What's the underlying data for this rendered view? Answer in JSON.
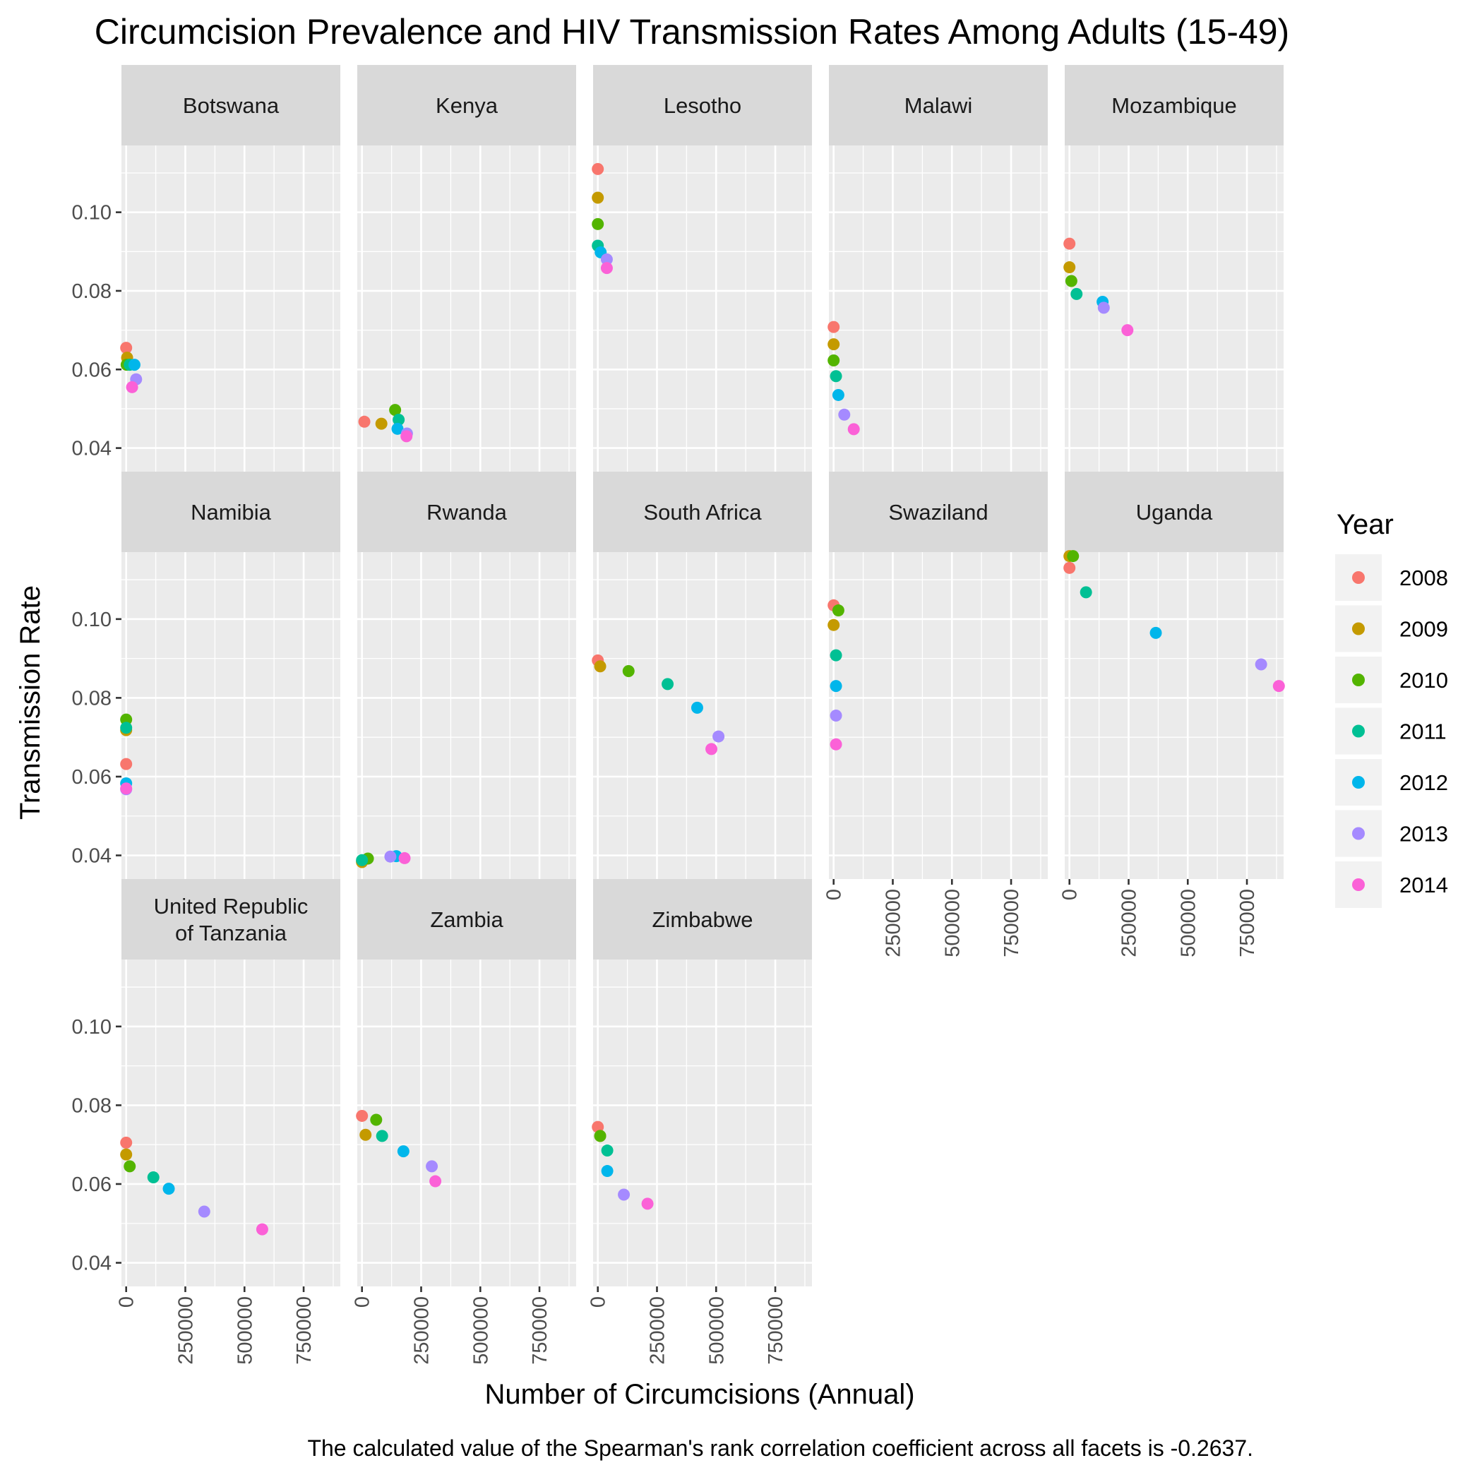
{
  "title": "Circumcision Prevalence and HIV Transmission Rates Among Adults (15-49)",
  "caption": "The calculated value of the Spearman's rank correlation coefficient across all facets is -0.2637.",
  "legend": {
    "title": "Year",
    "entries": [
      {
        "label": "2008",
        "color": "#F8766D"
      },
      {
        "label": "2009",
        "color": "#C49A00"
      },
      {
        "label": "2010",
        "color": "#53B400"
      },
      {
        "label": "2011",
        "color": "#00C094"
      },
      {
        "label": "2012",
        "color": "#00B6EB"
      },
      {
        "label": "2013",
        "color": "#A58AFF"
      },
      {
        "label": "2014",
        "color": "#FB61D7"
      }
    ]
  },
  "chart_data": {
    "type": "scatter",
    "facet_wrap": true,
    "xlabel": "Number of Circumcisions (Annual)",
    "ylabel": "Transmission Rate",
    "xlim": [
      -20000,
      905000
    ],
    "ylim": [
      0.034,
      0.117
    ],
    "x_ticks": [
      0,
      250000,
      500000,
      750000
    ],
    "x_tick_labels": [
      "0",
      "250000",
      "500000",
      "750000"
    ],
    "y_ticks": [
      0.04,
      0.06,
      0.08,
      0.1
    ],
    "y_tick_labels": [
      "0.04",
      "0.06",
      "0.08",
      "0.10"
    ],
    "legend_position": "right",
    "grid": true,
    "facets": [
      {
        "name": "Botswana",
        "points": [
          {
            "year": "2008",
            "x": 0,
            "y": 0.0655
          },
          {
            "year": "2009",
            "x": 4000,
            "y": 0.063
          },
          {
            "year": "2010",
            "x": 2000,
            "y": 0.0612
          },
          {
            "year": "2011",
            "x": 15000,
            "y": 0.0612
          },
          {
            "year": "2012",
            "x": 35000,
            "y": 0.0612
          },
          {
            "year": "2013",
            "x": 42000,
            "y": 0.0575
          },
          {
            "year": "2014",
            "x": 25000,
            "y": 0.0555
          }
        ]
      },
      {
        "name": "Kenya",
        "points": [
          {
            "year": "2008",
            "x": 10000,
            "y": 0.0467
          },
          {
            "year": "2009",
            "x": 82000,
            "y": 0.0462
          },
          {
            "year": "2010",
            "x": 140000,
            "y": 0.0497
          },
          {
            "year": "2011",
            "x": 155000,
            "y": 0.0472
          },
          {
            "year": "2012",
            "x": 150000,
            "y": 0.0449
          },
          {
            "year": "2013",
            "x": 190000,
            "y": 0.0437
          },
          {
            "year": "2014",
            "x": 188000,
            "y": 0.043
          }
        ]
      },
      {
        "name": "Lesotho",
        "points": [
          {
            "year": "2008",
            "x": 0,
            "y": 0.111
          },
          {
            "year": "2009",
            "x": 0,
            "y": 0.1037
          },
          {
            "year": "2010",
            "x": 0,
            "y": 0.097
          },
          {
            "year": "2011",
            "x": 0,
            "y": 0.0915
          },
          {
            "year": "2012",
            "x": 12000,
            "y": 0.0898
          },
          {
            "year": "2013",
            "x": 38000,
            "y": 0.088
          },
          {
            "year": "2014",
            "x": 38000,
            "y": 0.0858
          }
        ]
      },
      {
        "name": "Malawi",
        "points": [
          {
            "year": "2008",
            "x": 0,
            "y": 0.0708
          },
          {
            "year": "2009",
            "x": 0,
            "y": 0.0664
          },
          {
            "year": "2010",
            "x": 0,
            "y": 0.0623
          },
          {
            "year": "2011",
            "x": 10000,
            "y": 0.0583
          },
          {
            "year": "2012",
            "x": 20000,
            "y": 0.0535
          },
          {
            "year": "2013",
            "x": 45000,
            "y": 0.0485
          },
          {
            "year": "2014",
            "x": 85000,
            "y": 0.0448
          }
        ]
      },
      {
        "name": "Mozambique",
        "points": [
          {
            "year": "2008",
            "x": 0,
            "y": 0.092
          },
          {
            "year": "2009",
            "x": 0,
            "y": 0.086
          },
          {
            "year": "2010",
            "x": 8000,
            "y": 0.0825
          },
          {
            "year": "2011",
            "x": 30000,
            "y": 0.0792
          },
          {
            "year": "2012",
            "x": 140000,
            "y": 0.0772
          },
          {
            "year": "2013",
            "x": 145000,
            "y": 0.0757
          },
          {
            "year": "2014",
            "x": 245000,
            "y": 0.07
          }
        ]
      },
      {
        "name": "Namibia",
        "points": [
          {
            "year": "2008",
            "x": 0,
            "y": 0.0632
          },
          {
            "year": "2009",
            "x": 0,
            "y": 0.0718
          },
          {
            "year": "2010",
            "x": 0,
            "y": 0.0745
          },
          {
            "year": "2011",
            "x": 0,
            "y": 0.0724
          },
          {
            "year": "2012",
            "x": 0,
            "y": 0.0583
          },
          {
            "year": "2013",
            "x": 0,
            "y": 0.0568
          },
          {
            "year": "2014",
            "x": 0,
            "y": 0.057
          }
        ]
      },
      {
        "name": "Rwanda",
        "points": [
          {
            "year": "2008",
            "x": 0,
            "y": 0.0385
          },
          {
            "year": "2009",
            "x": 0,
            "y": 0.0383
          },
          {
            "year": "2010",
            "x": 25000,
            "y": 0.0392
          },
          {
            "year": "2011",
            "x": 0,
            "y": 0.0388
          },
          {
            "year": "2012",
            "x": 145000,
            "y": 0.0398
          },
          {
            "year": "2013",
            "x": 120000,
            "y": 0.0397
          },
          {
            "year": "2014",
            "x": 180000,
            "y": 0.0393
          }
        ]
      },
      {
        "name": "South Africa",
        "points": [
          {
            "year": "2008",
            "x": 0,
            "y": 0.0895
          },
          {
            "year": "2009",
            "x": 10000,
            "y": 0.088
          },
          {
            "year": "2010",
            "x": 130000,
            "y": 0.0868
          },
          {
            "year": "2011",
            "x": 295000,
            "y": 0.0835
          },
          {
            "year": "2012",
            "x": 420000,
            "y": 0.0775
          },
          {
            "year": "2013",
            "x": 510000,
            "y": 0.0702
          },
          {
            "year": "2014",
            "x": 480000,
            "y": 0.067
          }
        ]
      },
      {
        "name": "Swaziland",
        "points": [
          {
            "year": "2008",
            "x": 0,
            "y": 0.1035
          },
          {
            "year": "2009",
            "x": 0,
            "y": 0.0985
          },
          {
            "year": "2010",
            "x": 20000,
            "y": 0.1022
          },
          {
            "year": "2011",
            "x": 10000,
            "y": 0.0908
          },
          {
            "year": "2012",
            "x": 10000,
            "y": 0.083
          },
          {
            "year": "2013",
            "x": 10000,
            "y": 0.0755
          },
          {
            "year": "2014",
            "x": 10000,
            "y": 0.0682
          }
        ]
      },
      {
        "name": "Uganda",
        "points": [
          {
            "year": "2008",
            "x": 0,
            "y": 0.113
          },
          {
            "year": "2009",
            "x": 0,
            "y": 0.116
          },
          {
            "year": "2010",
            "x": 15000,
            "y": 0.116
          },
          {
            "year": "2011",
            "x": 70000,
            "y": 0.1068
          },
          {
            "year": "2012",
            "x": 365000,
            "y": 0.0965
          },
          {
            "year": "2013",
            "x": 810000,
            "y": 0.0885
          },
          {
            "year": "2014",
            "x": 885000,
            "y": 0.083
          }
        ]
      },
      {
        "name": "United Republic of Tanzania",
        "label_lines": [
          "United Republic",
          "of Tanzania"
        ],
        "points": [
          {
            "year": "2008",
            "x": 0,
            "y": 0.0705
          },
          {
            "year": "2009",
            "x": 0,
            "y": 0.0675
          },
          {
            "year": "2010",
            "x": 15000,
            "y": 0.0645
          },
          {
            "year": "2011",
            "x": 115000,
            "y": 0.0617
          },
          {
            "year": "2012",
            "x": 180000,
            "y": 0.0588
          },
          {
            "year": "2013",
            "x": 330000,
            "y": 0.053
          },
          {
            "year": "2014",
            "x": 575000,
            "y": 0.0485
          }
        ]
      },
      {
        "name": "Zambia",
        "points": [
          {
            "year": "2008",
            "x": 0,
            "y": 0.0773
          },
          {
            "year": "2009",
            "x": 15000,
            "y": 0.0725
          },
          {
            "year": "2010",
            "x": 60000,
            "y": 0.0763
          },
          {
            "year": "2011",
            "x": 85000,
            "y": 0.0722
          },
          {
            "year": "2012",
            "x": 175000,
            "y": 0.0683
          },
          {
            "year": "2013",
            "x": 295000,
            "y": 0.0645
          },
          {
            "year": "2014",
            "x": 310000,
            "y": 0.0607
          }
        ]
      },
      {
        "name": "Zimbabwe",
        "points": [
          {
            "year": "2008",
            "x": 0,
            "y": 0.0745
          },
          {
            "year": "2009",
            "x": 10000,
            "y": 0.0722
          },
          {
            "year": "2010",
            "x": 10000,
            "y": 0.0722
          },
          {
            "year": "2011",
            "x": 40000,
            "y": 0.0685
          },
          {
            "year": "2012",
            "x": 40000,
            "y": 0.0633
          },
          {
            "year": "2013",
            "x": 110000,
            "y": 0.0573
          },
          {
            "year": "2014",
            "x": 210000,
            "y": 0.055
          }
        ]
      }
    ]
  }
}
